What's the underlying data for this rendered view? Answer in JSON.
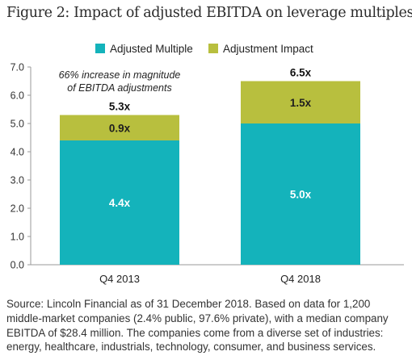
{
  "title": "Figure 2: Impact of adjusted EBITDA on leverage multiples",
  "source": "Source: Lincoln Financial as of 31 December 2018. Based on data for 1,200 middle-market companies (2.4% public, 97.6% private), with a median company EBITDA of $28.4 million. The companies come from a diverse set of industries: energy, healthcare, industrials, technology, consumer, and business services.",
  "colors": {
    "adjusted_multiple": "#14b3bb",
    "adjustment_impact": "#b8bf3e",
    "axis": "#9a9a9a"
  },
  "chart_data": {
    "type": "bar",
    "stacked": true,
    "categories": [
      "Q4 2013",
      "Q4 2018"
    ],
    "series": [
      {
        "name": "Adjusted Multiple",
        "values": [
          4.4,
          5.0
        ],
        "labels": [
          "4.4x",
          "5.0x"
        ]
      },
      {
        "name": "Adjustment Impact",
        "values": [
          0.9,
          1.5
        ],
        "labels": [
          "0.9x",
          "1.5x"
        ]
      }
    ],
    "totals": [
      "5.3x",
      "6.5x"
    ],
    "ylim": [
      0,
      7
    ],
    "yticks": [
      "0.0",
      "1.0",
      "2.0",
      "3.0",
      "4.0",
      "5.0",
      "6.0",
      "7.0"
    ],
    "annotation": [
      "66% increase in magnitude",
      "of EBITDA adjustments"
    ],
    "legend_position": "top",
    "grid": false
  }
}
